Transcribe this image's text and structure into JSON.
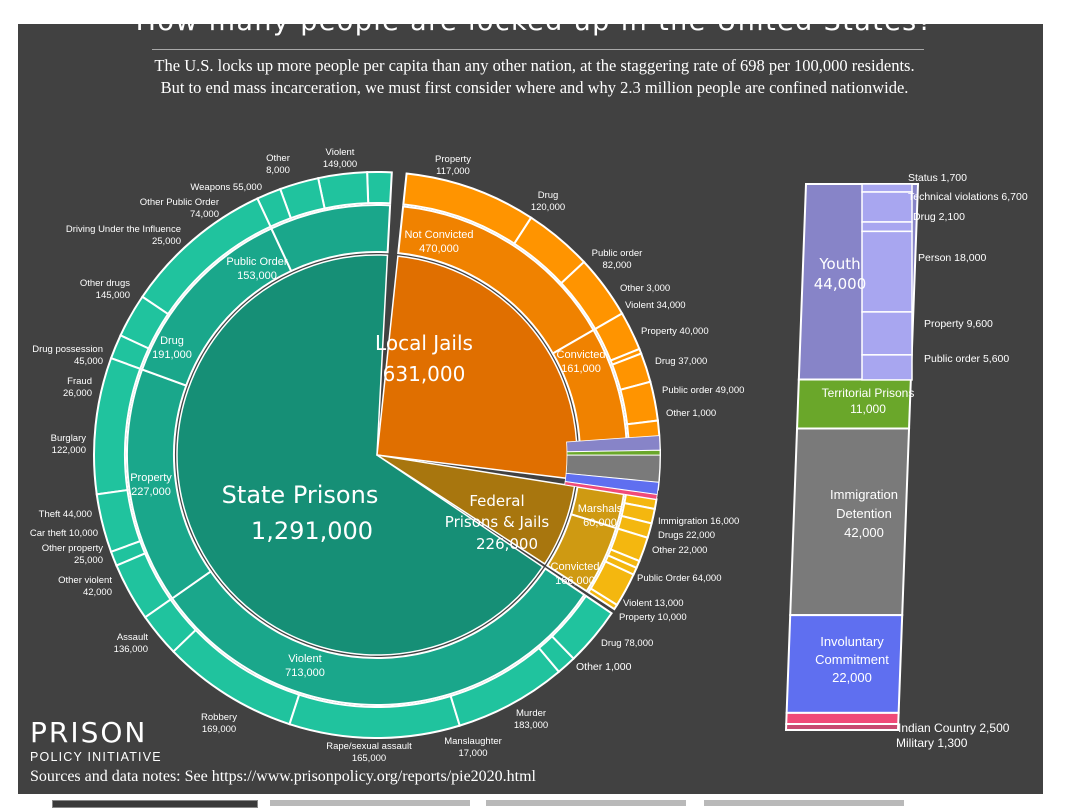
{
  "title": "How many people are locked up in the United States?",
  "subtitle_line1": "The U.S. locks up more people per capita than any other nation, at the staggering rate of 698 per 100,000 residents.",
  "subtitle_line2": "But to end mass incarceration, we must first consider where and why 2.3 million people are confined nationwide.",
  "logo_line1": "PRISON",
  "logo_line2": "POLICY INITIATIVE",
  "sources": "Sources and data notes: See https://www.prisonpolicy.org/reports/pie2020.html",
  "chart_data": {
    "type": "pie",
    "inner_segments": [
      {
        "name": "State Prisons",
        "label": "1,291,000",
        "value": 1291000,
        "color": "#168f76"
      },
      {
        "name": "Local Jails",
        "label": "631,000",
        "value": 631000,
        "color": "#e06f00"
      },
      {
        "name": "Federal Prisons & Jails",
        "label": "226,000",
        "value": 226000,
        "color": "#a8760e"
      }
    ],
    "middle_ring": [
      {
        "name": "Violent",
        "label": "713,000",
        "value": 713000,
        "group": "State Prisons"
      },
      {
        "name": "Property",
        "label": "227,000",
        "value": 227000,
        "group": "State Prisons"
      },
      {
        "name": "Drug",
        "label": "191,000",
        "value": 191000,
        "group": "State Prisons"
      },
      {
        "name": "Public Order",
        "label": "153,000",
        "value": 153000,
        "group": "State Prisons"
      },
      {
        "name": "Not Convicted",
        "label": "470,000",
        "value": 470000,
        "group": "Local Jails"
      },
      {
        "name": "Convicted",
        "label": "161,000",
        "value": 161000,
        "group": "Local Jails"
      },
      {
        "name": "Marshals",
        "label": "60,000",
        "value": 60000,
        "group": "Federal Prisons & Jails"
      },
      {
        "name": "Convicted",
        "label": "166,000",
        "value": 166000,
        "group": "Federal Prisons & Jails"
      }
    ],
    "outer_ring": [
      {
        "name": "Other",
        "label": "8,000",
        "value": 8000
      },
      {
        "name": "Weapons",
        "label": "55,000",
        "value": 55000
      },
      {
        "name": "Other Public Order",
        "label": "74,000",
        "value": 74000
      },
      {
        "name": "Driving Under the Influence",
        "label": "25,000",
        "value": 25000
      },
      {
        "name": "Other drugs",
        "label": "145,000",
        "value": 145000
      },
      {
        "name": "Drug possession",
        "label": "45,000",
        "value": 45000
      },
      {
        "name": "Fraud",
        "label": "26,000",
        "value": 26000
      },
      {
        "name": "Burglary",
        "label": "122,000",
        "value": 122000
      },
      {
        "name": "Theft",
        "label": "44,000",
        "value": 44000
      },
      {
        "name": "Car theft",
        "label": "10,000",
        "value": 10000
      },
      {
        "name": "Other property",
        "label": "25,000",
        "value": 25000
      },
      {
        "name": "Other violent",
        "label": "42,000",
        "value": 42000
      },
      {
        "name": "Assault",
        "label": "136,000",
        "value": 136000
      },
      {
        "name": "Robbery",
        "label": "169,000",
        "value": 169000
      },
      {
        "name": "Rape/sexual assault",
        "label": "165,000",
        "value": 165000
      },
      {
        "name": "Manslaughter",
        "label": "17,000",
        "value": 17000
      },
      {
        "name": "Murder",
        "label": "183,000",
        "value": 183000
      },
      {
        "name": "Violent",
        "label": "149,000",
        "value": 149000
      },
      {
        "name": "Property",
        "label": "117,000",
        "value": 117000
      },
      {
        "name": "Drug",
        "label": "120,000",
        "value": 120000
      },
      {
        "name": "Public order",
        "label": "82,000",
        "value": 82000
      },
      {
        "name": "Other",
        "label": "3,000",
        "value": 3000
      },
      {
        "name": "Violent",
        "label": "34,000",
        "value": 34000
      },
      {
        "name": "Property",
        "label": "40,000",
        "value": 40000
      },
      {
        "name": "Drug",
        "label": "37,000",
        "value": 37000
      },
      {
        "name": "Public order",
        "label": "49,000",
        "value": 49000
      },
      {
        "name": "Other",
        "label": "1,000",
        "value": 1000
      },
      {
        "name": "Immigration",
        "label": "16,000",
        "value": 16000
      },
      {
        "name": "Drugs",
        "label": "22,000",
        "value": 22000
      },
      {
        "name": "Other",
        "label": "22,000",
        "value": 22000
      },
      {
        "name": "Public Order",
        "label": "64,000",
        "value": 64000
      },
      {
        "name": "Violent",
        "label": "13,000",
        "value": 13000
      },
      {
        "name": "Property",
        "label": "10,000",
        "value": 10000
      },
      {
        "name": "Drug",
        "label": "78,000",
        "value": 78000
      },
      {
        "name": "Other",
        "label": "1,000",
        "value": 1000
      }
    ],
    "side_bar": [
      {
        "name": "Youth",
        "label": "44,000",
        "value": 44000,
        "color": "#8784c8"
      },
      {
        "name": "Territorial Prisons",
        "label": "11,000",
        "value": 11000,
        "color": "#6aa72a"
      },
      {
        "name": "Immigration Detention",
        "label": "42,000",
        "value": 42000,
        "color": "#7a7a7a"
      },
      {
        "name": "Involuntary Commitment",
        "label": "22,000",
        "value": 22000,
        "color": "#5f6ff0"
      },
      {
        "name": "Indian Country",
        "label": "2,500",
        "value": 2500,
        "color": "#f04a78"
      },
      {
        "name": "Military",
        "label": "1,300",
        "value": 1300,
        "color": "#c84a70"
      }
    ],
    "youth_breakdown": [
      {
        "name": "Status",
        "label": "1,700",
        "value": 1700
      },
      {
        "name": "Technical violations",
        "label": "6,700",
        "value": 6700
      },
      {
        "name": "Drug",
        "label": "2,100",
        "value": 2100
      },
      {
        "name": "Person",
        "label": "18,000",
        "value": 18000
      },
      {
        "name": "Property",
        "label": "9,600",
        "value": 9600
      },
      {
        "name": "Public order",
        "label": "5,600",
        "value": 5600
      }
    ]
  }
}
